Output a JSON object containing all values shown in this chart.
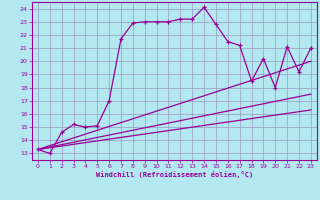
{
  "xlabel": "Windchill (Refroidissement éolien,°C)",
  "line_color": "#990099",
  "bg_color": "#b3e8f0",
  "grid_color": "#9999bb",
  "xlim": [
    -0.5,
    23.5
  ],
  "ylim": [
    12.5,
    24.5
  ],
  "xticks": [
    0,
    1,
    2,
    3,
    4,
    5,
    6,
    7,
    8,
    9,
    10,
    11,
    12,
    13,
    14,
    15,
    16,
    17,
    18,
    19,
    20,
    21,
    22,
    23
  ],
  "yticks": [
    13,
    14,
    15,
    16,
    17,
    18,
    19,
    20,
    21,
    22,
    23,
    24
  ],
  "series1_x": [
    0,
    1,
    2,
    3,
    4,
    5,
    6,
    7,
    8,
    9,
    10,
    11,
    12,
    13,
    14,
    15,
    16,
    17,
    18,
    19,
    20,
    21,
    22,
    23
  ],
  "series1_y": [
    13.3,
    13.0,
    14.6,
    15.2,
    15.0,
    15.1,
    17.0,
    21.7,
    22.9,
    23.0,
    23.0,
    23.0,
    23.2,
    23.2,
    24.1,
    22.8,
    21.5,
    21.2,
    18.5,
    20.2,
    18.0,
    21.1,
    19.2,
    21.0
  ],
  "line2_x": [
    0,
    23
  ],
  "line2_y": [
    13.3,
    20.0
  ],
  "line3_x": [
    0,
    23
  ],
  "line3_y": [
    13.3,
    17.5
  ],
  "line4_x": [
    0,
    23
  ],
  "line4_y": [
    13.3,
    16.3
  ]
}
